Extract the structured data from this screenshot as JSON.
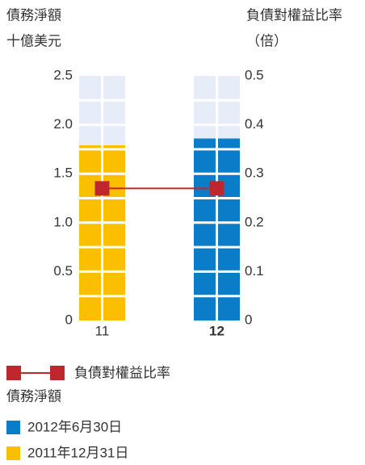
{
  "chart_data": {
    "type": "bar",
    "y_label": [
      "債務淨額",
      "十億美元"
    ],
    "y2_label": [
      "負債對權益比率",
      "（倍）"
    ],
    "categories": [
      "11",
      "12"
    ],
    "bold_category_index": 1,
    "series": [
      {
        "name": "2012年6月30日",
        "color": "#0a7cc8",
        "values": [
          null,
          1.86
        ]
      },
      {
        "name": "2011年12月31日",
        "color": "#fbbf00",
        "values": [
          1.79,
          null
        ]
      },
      {
        "name": "負債對權益比率",
        "type": "line",
        "axis": "y2",
        "color": "#c0272d",
        "values": [
          0.27,
          0.27
        ]
      }
    ],
    "legend_title": "債務淨額",
    "ylim": [
      0,
      2.5
    ],
    "yticks": [
      0,
      0.5,
      {
        "value": 1,
        "label": "1.0"
      },
      1.5,
      {
        "value": 2,
        "label": "2.0"
      },
      2.5
    ],
    "y2lim": [
      0,
      0.5
    ],
    "y2ticks": [
      0,
      0.1,
      0.2,
      0.3,
      0.4,
      0.5
    ]
  }
}
